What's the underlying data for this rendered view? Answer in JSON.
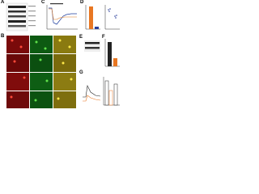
{
  "figure": {
    "panels": [
      "A",
      "B",
      "C",
      "D",
      "E",
      "F",
      "G"
    ]
  }
}
